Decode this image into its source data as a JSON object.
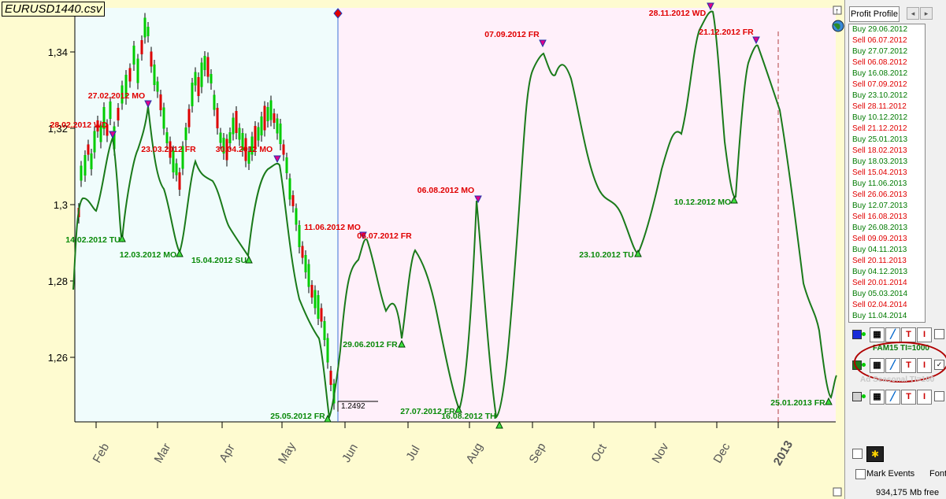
{
  "file_title": "EURUSD1440.csv",
  "chart_data": {
    "type": "line",
    "y_ticks": [
      "1,34",
      "1,32",
      "1,3",
      "1,28",
      "1,26"
    ],
    "x_ticks": [
      "Feb",
      "Mar",
      "Apr",
      "May",
      "Jun",
      "Jul",
      "Aug",
      "Sep",
      "Oct",
      "Nov",
      "Dec",
      "2013"
    ],
    "price_readout": "1.2492",
    "annotations": [
      {
        "text": "27.02.2012 MO",
        "type": "sell"
      },
      {
        "text": "28.02.2012 WD",
        "type": "sell"
      },
      {
        "text": "23.03.2012 FR",
        "type": "sell"
      },
      {
        "text": "30.04.2012 MO",
        "type": "sell"
      },
      {
        "text": "11.06.2012 MO",
        "type": "sell"
      },
      {
        "text": "06.07.2012 FR",
        "type": "sell"
      },
      {
        "text": "06.08.2012 MO",
        "type": "sell"
      },
      {
        "text": "07.09.2012 FR",
        "type": "sell"
      },
      {
        "text": "28.11.2012 WD",
        "type": "sell"
      },
      {
        "text": "21.12.2012 FR",
        "type": "sell"
      },
      {
        "text": "14.02.2012 TU",
        "type": "buy"
      },
      {
        "text": "12.03.2012 MO",
        "type": "buy"
      },
      {
        "text": "15.04.2012 SU",
        "type": "buy"
      },
      {
        "text": "25.05.2012 FR",
        "type": "buy"
      },
      {
        "text": "29.06.2012 FR",
        "type": "buy"
      },
      {
        "text": "27.07.2012 FR",
        "type": "buy"
      },
      {
        "text": "16.08.2012 TH",
        "type": "buy"
      },
      {
        "text": "23.10.2012 TU",
        "type": "buy"
      },
      {
        "text": "10.12.2012 MO",
        "type": "buy"
      },
      {
        "text": "25.01.2013 FR",
        "type": "buy"
      }
    ],
    "colors": {
      "projection": "#1a7a1a",
      "sell": "#e00000",
      "buy": "#0a8a0a",
      "past_bg": "#f0fcfc",
      "future_bg": "#fff0fa"
    }
  },
  "panel": {
    "tab_label": "Profit Profile",
    "signals": [
      {
        "text": "Buy 29.06.2012",
        "type": "buy"
      },
      {
        "text": "Sell 06.07.2012",
        "type": "sell"
      },
      {
        "text": "Buy 27.07.2012",
        "type": "buy"
      },
      {
        "text": "Sell 06.08.2012",
        "type": "sell"
      },
      {
        "text": "Buy 16.08.2012",
        "type": "buy"
      },
      {
        "text": "Sell 07.09.2012",
        "type": "sell"
      },
      {
        "text": "Buy 23.10.2012",
        "type": "buy"
      },
      {
        "text": "Sell 28.11.2012",
        "type": "sell"
      },
      {
        "text": "Buy 10.12.2012",
        "type": "buy"
      },
      {
        "text": "Sell 21.12.2012",
        "type": "sell"
      },
      {
        "text": "Buy 25.01.2013",
        "type": "buy"
      },
      {
        "text": "Sell 18.02.2013",
        "type": "sell"
      },
      {
        "text": "Buy 18.03.2013",
        "type": "buy"
      },
      {
        "text": "Sell 15.04.2013",
        "type": "sell"
      },
      {
        "text": "Buy 11.06.2013",
        "type": "buy"
      },
      {
        "text": "Sell 26.06.2013",
        "type": "sell"
      },
      {
        "text": "Buy 12.07.2013",
        "type": "buy"
      },
      {
        "text": "Sell 16.08.2013",
        "type": "sell"
      },
      {
        "text": "Buy 26.08.2013",
        "type": "buy"
      },
      {
        "text": "Sell 09.09.2013",
        "type": "sell"
      },
      {
        "text": "Buy 04.11.2013",
        "type": "buy"
      },
      {
        "text": "Sell 20.11.2013",
        "type": "sell"
      },
      {
        "text": "Buy 04.12.2013",
        "type": "buy"
      },
      {
        "text": "Sell 20.01.2014",
        "type": "sell"
      },
      {
        "text": "Buy 05.03.2014",
        "type": "buy"
      },
      {
        "text": "Sell 02.04.2014",
        "type": "sell"
      },
      {
        "text": "Buy 11.04.2014",
        "type": "buy"
      }
    ],
    "indicator_label": "FAM15 TI=1000",
    "indicator_label2": "Ad Seasonal TI=100",
    "mark_events_label": "Mark Events",
    "font_label": "Font",
    "memory_label": "934,175 Mb free",
    "button_glyphs": {
      "table": "▦",
      "line": "╱",
      "text": "T",
      "cursor": "I",
      "check": "✓"
    }
  }
}
